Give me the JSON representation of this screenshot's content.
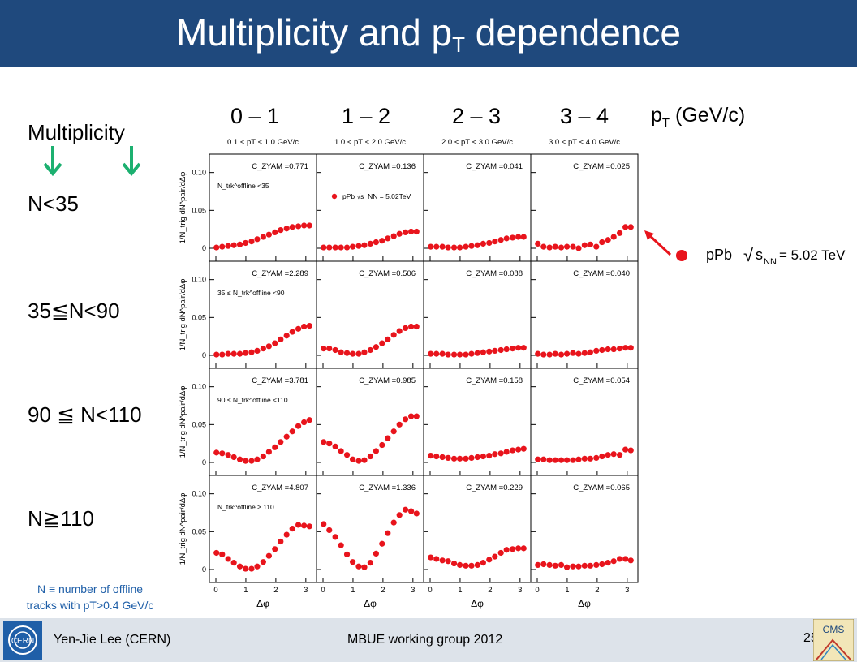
{
  "header": {
    "title_main": "Multiplicity and p",
    "title_sub": "T",
    "title_end": " dependence"
  },
  "left_labels": {
    "heading": "Multiplicity",
    "rows": [
      "N<35",
      "35≦N<90",
      "90 ≦ N<110",
      "N≧110"
    ]
  },
  "pt_headers": {
    "bins": [
      "0 – 1",
      "1 – 2",
      "2 – 3",
      "3 – 4"
    ],
    "unit_main": "p",
    "unit_sub": "T",
    "unit_end": " (GeV/c)"
  },
  "legend_external": {
    "label": "pPb",
    "energy_label": "s",
    "energy_sub": "NN",
    "energy_value": " = 5.02 TeV"
  },
  "note": {
    "line1": "N ≡ number of offline",
    "line2": "tracks with pT>0.4 GeV/c"
  },
  "footer": {
    "author": "Yen-Jie Lee (CERN)",
    "center": "MBUE working group 2012",
    "page": "25",
    "left_logo_text": "CERN",
    "right_logo_text": "CMS"
  },
  "colors": {
    "title_bar": "#1f497d",
    "marker": "#e8141c",
    "arrow": "#1cb070",
    "footer_bg": "#dde3ea",
    "note": "#1f5fa8"
  },
  "chart_data": {
    "type": "scatter",
    "xlabel": "Δφ",
    "ylabel": "1/N_trig dN^pair/dΔφ",
    "xlim": [
      0,
      3.14
    ],
    "x_ticks": [
      "0",
      "1",
      "2",
      "3"
    ],
    "panel_titles": [
      "0.1 < pT < 1.0 GeV/c",
      "1.0 < pT < 2.0 GeV/c",
      "2.0 < pT < 3.0 GeV/c",
      "3.0 < pT < 4.0 GeV/c"
    ],
    "rows": [
      {
        "ylim": [
          0,
          0.12
        ],
        "y_ticks": [
          "0",
          "0.05",
          "0.10"
        ],
        "mult_label": "N_trk^offline <35",
        "czyam": [
          "C_ZYAM =0.771",
          "C_ZYAM =0.136",
          "C_ZYAM =0.041",
          "C_ZYAM =0.025"
        ]
      },
      {
        "ylim": [
          0,
          0.12
        ],
        "y_ticks": [
          "0",
          "0.05",
          "0.10"
        ],
        "mult_label": "35 ≤ N_trk^offline <90",
        "czyam": [
          "C_ZYAM =2.289",
          "C_ZYAM =0.506",
          "C_ZYAM =0.088",
          "C_ZYAM =0.040"
        ]
      },
      {
        "ylim": [
          0,
          0.12
        ],
        "y_ticks": [
          "0",
          "0.05",
          "0.10"
        ],
        "mult_label": "90 ≤ N_trk^offline <110",
        "czyam": [
          "C_ZYAM =3.781",
          "C_ZYAM =0.985",
          "C_ZYAM =0.158",
          "C_ZYAM =0.054"
        ]
      },
      {
        "ylim": [
          0,
          0.12
        ],
        "y_ticks": [
          "0",
          "0.05",
          "0.10"
        ],
        "mult_label": "N_trk^offline ≥ 110",
        "czyam": [
          "C_ZYAM =4.807",
          "C_ZYAM =1.336",
          "C_ZYAM =0.229",
          "C_ZYAM =0.065"
        ]
      }
    ],
    "inner_legend": "pPb √s_NN = 5.02TeV",
    "series_x": [
      0.02,
      0.21,
      0.41,
      0.6,
      0.8,
      0.99,
      1.19,
      1.38,
      1.58,
      1.77,
      1.97,
      2.16,
      2.36,
      2.55,
      2.75,
      2.94,
      3.12
    ],
    "series": [
      [
        0.001,
        0.002,
        0.003,
        0.004,
        0.005,
        0.007,
        0.009,
        0.012,
        0.015,
        0.018,
        0.021,
        0.024,
        0.026,
        0.028,
        0.029,
        0.03,
        0.03
      ],
      [
        0.001,
        0.001,
        0.001,
        0.001,
        0.001,
        0.002,
        0.003,
        0.004,
        0.006,
        0.008,
        0.01,
        0.013,
        0.016,
        0.019,
        0.021,
        0.022,
        0.022
      ],
      [
        0.002,
        0.002,
        0.002,
        0.001,
        0.001,
        0.001,
        0.002,
        0.003,
        0.004,
        0.006,
        0.007,
        0.009,
        0.011,
        0.013,
        0.014,
        0.015,
        0.015
      ],
      [
        0.006,
        0.002,
        0.001,
        0.002,
        0.001,
        0.002,
        0.002,
        0.0,
        0.004,
        0.005,
        0.002,
        0.008,
        0.011,
        0.015,
        0.02,
        0.028,
        0.028
      ],
      [
        0.001,
        0.001,
        0.002,
        0.002,
        0.002,
        0.003,
        0.004,
        0.006,
        0.009,
        0.012,
        0.016,
        0.021,
        0.026,
        0.031,
        0.035,
        0.038,
        0.039
      ],
      [
        0.009,
        0.009,
        0.007,
        0.004,
        0.003,
        0.002,
        0.002,
        0.004,
        0.007,
        0.011,
        0.016,
        0.021,
        0.027,
        0.032,
        0.036,
        0.038,
        0.038
      ],
      [
        0.002,
        0.002,
        0.002,
        0.001,
        0.001,
        0.001,
        0.001,
        0.002,
        0.003,
        0.004,
        0.005,
        0.006,
        0.007,
        0.008,
        0.009,
        0.01,
        0.01
      ],
      [
        0.002,
        0.001,
        0.001,
        0.002,
        0.001,
        0.002,
        0.003,
        0.002,
        0.003,
        0.004,
        0.006,
        0.007,
        0.008,
        0.008,
        0.009,
        0.01,
        0.01
      ],
      [
        0.013,
        0.012,
        0.01,
        0.007,
        0.004,
        0.002,
        0.002,
        0.004,
        0.008,
        0.014,
        0.02,
        0.027,
        0.034,
        0.041,
        0.048,
        0.053,
        0.056
      ],
      [
        0.027,
        0.025,
        0.021,
        0.015,
        0.01,
        0.004,
        0.002,
        0.003,
        0.008,
        0.015,
        0.023,
        0.032,
        0.041,
        0.05,
        0.057,
        0.061,
        0.061
      ],
      [
        0.009,
        0.008,
        0.007,
        0.006,
        0.005,
        0.005,
        0.005,
        0.006,
        0.007,
        0.008,
        0.009,
        0.011,
        0.012,
        0.014,
        0.016,
        0.017,
        0.018
      ],
      [
        0.004,
        0.004,
        0.003,
        0.003,
        0.003,
        0.003,
        0.003,
        0.004,
        0.005,
        0.005,
        0.006,
        0.008,
        0.01,
        0.011,
        0.01,
        0.017,
        0.016
      ],
      [
        0.022,
        0.02,
        0.014,
        0.009,
        0.004,
        0.001,
        0.001,
        0.004,
        0.01,
        0.018,
        0.027,
        0.037,
        0.046,
        0.054,
        0.059,
        0.058,
        0.057
      ],
      [
        0.06,
        0.052,
        0.043,
        0.032,
        0.02,
        0.01,
        0.004,
        0.003,
        0.009,
        0.021,
        0.034,
        0.048,
        0.062,
        0.072,
        0.079,
        0.077,
        0.074
      ],
      [
        0.016,
        0.014,
        0.012,
        0.011,
        0.008,
        0.006,
        0.005,
        0.005,
        0.006,
        0.009,
        0.013,
        0.017,
        0.022,
        0.026,
        0.027,
        0.028,
        0.028
      ],
      [
        0.006,
        0.007,
        0.006,
        0.005,
        0.006,
        0.003,
        0.004,
        0.004,
        0.005,
        0.005,
        0.006,
        0.007,
        0.009,
        0.011,
        0.014,
        0.014,
        0.012
      ]
    ]
  }
}
